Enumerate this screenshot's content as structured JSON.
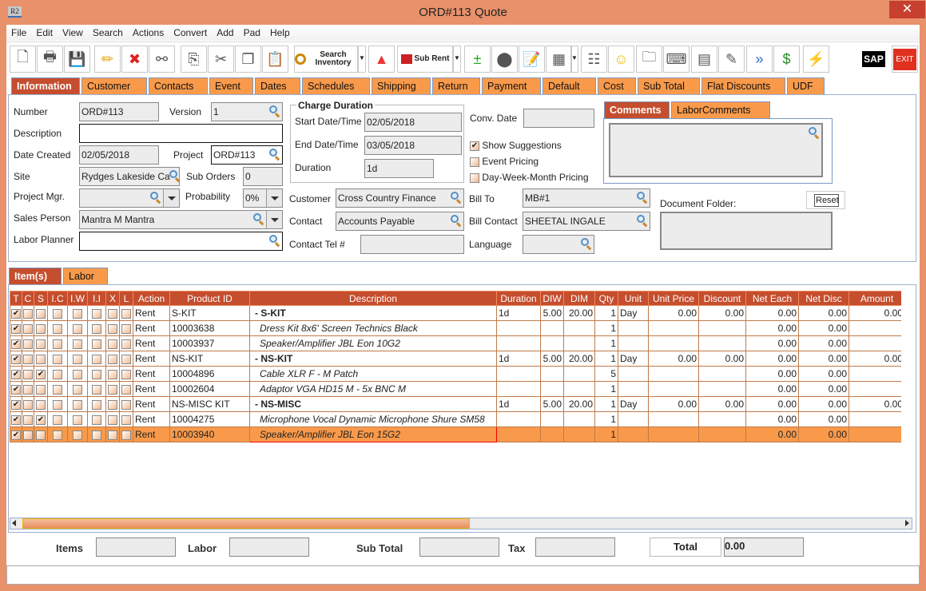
{
  "window": {
    "title": "ORD#113 Quote",
    "app_icon": "R2",
    "close": "✕"
  },
  "menu": [
    "File",
    "Edit",
    "View",
    "Search",
    "Actions",
    "Convert",
    "Add",
    "Pad",
    "Help"
  ],
  "toolbar": {
    "search_inventory": "Search Inventory",
    "sub_rent": "Sub Rent",
    "sap": "SAP",
    "exit": "EXIT",
    "icons": [
      "new-document-icon",
      "print-icon",
      "save-icon",
      "edit-pencil-icon",
      "delete-x-icon",
      "binoculars-icon",
      "copy-to-icon",
      "cut-scissors-icon",
      "copy-icon",
      "paste-icon",
      "search-inventory-icon",
      "shapes-icon",
      "sub-rent-factory-icon",
      "add-remove-icon",
      "availability-balls-icon",
      "notepad-icon",
      "calendar-icon",
      "hierarchy-icon",
      "smiley-icon",
      "folder-clock-icon",
      "keyboard-key-icon",
      "stacked-barrels-icon",
      "edit-form-icon",
      "payment-forward-icon",
      "invoice-money-icon",
      "lightning-icon"
    ]
  },
  "tabs": [
    "Information",
    "Customer",
    "Contacts",
    "Event",
    "Dates",
    "Schedules",
    "Shipping",
    "Return",
    "Payment",
    "Default",
    "Cost",
    "Sub Total",
    "Flat Discounts",
    "UDF"
  ],
  "info": {
    "number_label": "Number",
    "number": "ORD#113",
    "version_label": "Version",
    "version": "1",
    "description_label": "Description",
    "description": "",
    "date_created_label": "Date Created",
    "date_created": "02/05/2018",
    "project_label": "Project",
    "project": "ORD#113",
    "site_label": "Site",
    "site": "Rydges Lakeside Ca",
    "sub_orders_label": "Sub Orders",
    "sub_orders": "0",
    "project_mgr_label": "Project Mgr.",
    "project_mgr": "",
    "probability_label": "Probability",
    "probability": "0%",
    "sales_person_label": "Sales Person",
    "sales_person": "Mantra M Mantra",
    "labor_planner_label": "Labor Planner",
    "labor_planner": "",
    "charge_duration_title": "Charge Duration",
    "start_label": "Start Date/Time",
    "start": "02/05/2018",
    "end_label": "End Date/Time",
    "end": "03/05/2018",
    "duration_label": "Duration",
    "duration": "1d",
    "customer_label": "Customer",
    "customer": "Cross Country Finance",
    "contact_label": "Contact",
    "contact": "Accounts Payable",
    "contact_tel_label": "Contact Tel #",
    "contact_tel": "",
    "conv_date_label": "Conv. Date",
    "conv_date": "",
    "show_suggestions": "Show Suggestions",
    "event_pricing": "Event Pricing",
    "dwm_pricing": "Day-Week-Month Pricing",
    "bill_to_label": "Bill To",
    "bill_to": "MB#1",
    "bill_contact_label": "Bill Contact",
    "bill_contact": "SHEETAL INGALE",
    "language_label": "Language",
    "language": "",
    "comments_tab": "Comments",
    "labor_comments_tab": "LaborComments",
    "document_folder_label": "Document Folder:",
    "reset": "Reset"
  },
  "item_tabs": [
    "Item(s)",
    "Labor"
  ],
  "grid": {
    "columns": [
      "T",
      "C",
      "S",
      "I.C",
      "I.W",
      "I.I",
      "X",
      "L",
      "Action",
      "Product ID",
      "Description",
      "Duration",
      "DIW",
      "DIM",
      "Qty",
      "Unit",
      "Unit Price",
      "Discount",
      "Net Each",
      "Net Disc",
      "Amount"
    ],
    "rows": [
      {
        "flags": [
          1,
          0,
          0,
          0,
          0,
          0,
          0,
          0
        ],
        "action": "Rent",
        "product_id": "S-KIT",
        "description": "-  S-KIT",
        "kit": true,
        "duration": "1d",
        "diw": "5.00",
        "dim": "20.00",
        "qty": "1",
        "unit": "Day",
        "unit_price": "0.00",
        "discount": "0.00",
        "net_each": "0.00",
        "net_disc": "0.00",
        "amount": "0.00"
      },
      {
        "flags": [
          1,
          0,
          0,
          0,
          0,
          0,
          0,
          0
        ],
        "action": "Rent",
        "product_id": "10003638",
        "description": "Dress Kit 8x6' Screen Technics Black",
        "qty": "1",
        "net_each": "0.00",
        "net_disc": "0.00"
      },
      {
        "flags": [
          1,
          0,
          0,
          0,
          0,
          0,
          0,
          0
        ],
        "action": "Rent",
        "product_id": "10003937",
        "description": "Speaker/Amplifier JBL Eon 10G2",
        "qty": "1",
        "net_each": "0.00",
        "net_disc": "0.00"
      },
      {
        "flags": [
          1,
          0,
          0,
          0,
          0,
          0,
          0,
          0
        ],
        "action": "Rent",
        "product_id": "NS-KIT",
        "description": "-  NS-KIT",
        "kit": true,
        "duration": "1d",
        "diw": "5.00",
        "dim": "20.00",
        "qty": "1",
        "unit": "Day",
        "unit_price": "0.00",
        "discount": "0.00",
        "net_each": "0.00",
        "net_disc": "0.00",
        "amount": "0.00"
      },
      {
        "flags": [
          1,
          0,
          1,
          0,
          0,
          0,
          0,
          0
        ],
        "action": "Rent",
        "product_id": "10004896",
        "description": "Cable XLR F - M Patch",
        "qty": "5",
        "net_each": "0.00",
        "net_disc": "0.00"
      },
      {
        "flags": [
          1,
          0,
          0,
          0,
          0,
          0,
          0,
          0
        ],
        "action": "Rent",
        "product_id": "10002604",
        "description": "Adaptor VGA HD15 M - 5x BNC M",
        "qty": "1",
        "net_each": "0.00",
        "net_disc": "0.00"
      },
      {
        "flags": [
          1,
          0,
          0,
          0,
          0,
          0,
          0,
          0
        ],
        "action": "Rent",
        "product_id": "NS-MISC KIT",
        "description": "-  NS-MISC",
        "kit": true,
        "duration": "1d",
        "diw": "5.00",
        "dim": "20.00",
        "qty": "1",
        "unit": "Day",
        "unit_price": "0.00",
        "discount": "0.00",
        "net_each": "0.00",
        "net_disc": "0.00",
        "amount": "0.00"
      },
      {
        "flags": [
          1,
          0,
          1,
          0,
          0,
          0,
          0,
          0
        ],
        "action": "Rent",
        "product_id": "10004275",
        "description": "Microphone Vocal Dynamic Microphone Shure SM58",
        "qty": "1",
        "net_each": "0.00",
        "net_disc": "0.00"
      },
      {
        "flags": [
          1,
          0,
          0,
          0,
          0,
          0,
          0,
          0
        ],
        "action": "Rent",
        "product_id": "10003940",
        "description": "Speaker/Amplifier JBL Eon 15G2",
        "qty": "1",
        "net_each": "0.00",
        "net_disc": "0.00",
        "selected": true
      }
    ]
  },
  "footer": {
    "items_label": "Items",
    "items": "",
    "labor_label": "Labor",
    "labor": "",
    "sub_total_label": "Sub Total",
    "sub_total": "",
    "tax_label": "Tax",
    "tax": "",
    "total_label": "Total",
    "total": "0.00"
  },
  "colors": {
    "frame": "#E8916A",
    "tab": "#F99A4B",
    "active_tab": "#C54E2E"
  }
}
